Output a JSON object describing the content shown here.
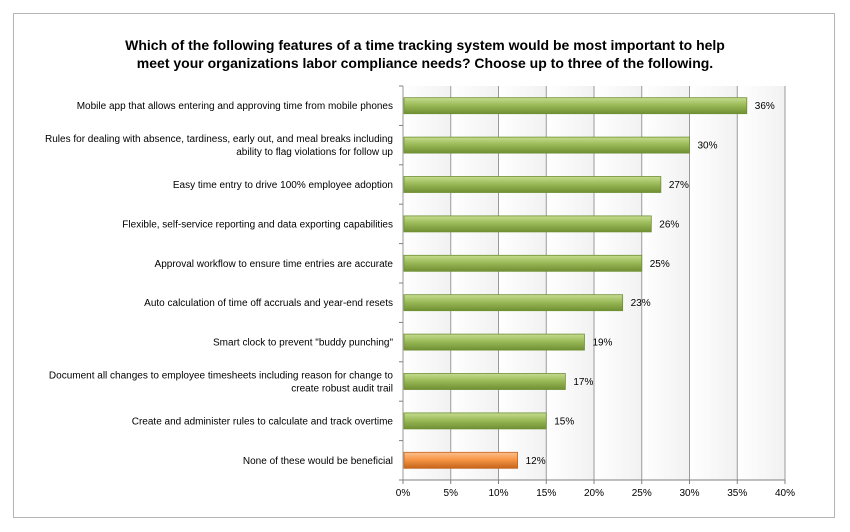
{
  "chart_data": {
    "type": "bar",
    "orientation": "horizontal",
    "title_lines": [
      "Which of the following features of a time tracking system would be most important to help",
      "meet your organizations labor compliance needs?  Choose up to three of the following."
    ],
    "categories": [
      [
        "Mobile app that allows entering and approving time from mobile phones"
      ],
      [
        "Rules for dealing with absence, tardiness, early out, and meal breaks including",
        "ability to flag violations for follow up"
      ],
      [
        "Easy time entry to drive 100% employee adoption"
      ],
      [
        "Flexible, self-service reporting and data exporting capabilities"
      ],
      [
        "Approval workflow to ensure time entries are accurate"
      ],
      [
        "Auto calculation of time off accruals and year-end resets"
      ],
      [
        "Smart clock to prevent \"buddy punching\""
      ],
      [
        "Document all changes to employee timesheets including reason for change to",
        "create robust audit trail"
      ],
      [
        "Create and administer rules to calculate and track overtime"
      ],
      [
        "None of these would be beneficial"
      ]
    ],
    "values": [
      36,
      30,
      27,
      26,
      25,
      23,
      19,
      17,
      15,
      12
    ],
    "data_labels": [
      "36%",
      "30%",
      "27%",
      "26%",
      "25%",
      "23%",
      "19%",
      "17%",
      "15%",
      "12%"
    ],
    "highlight_index": 9,
    "xlim": [
      0,
      40
    ],
    "x_ticks": [
      0,
      5,
      10,
      15,
      20,
      25,
      30,
      35,
      40
    ],
    "x_tick_labels": [
      "0%",
      "5%",
      "10%",
      "15%",
      "20%",
      "25%",
      "30%",
      "35%",
      "40%"
    ],
    "grid": true,
    "colors": {
      "bar": "#9bbb59",
      "bar_light": "#c6dc8f",
      "bar_dark": "#6f8f33",
      "highlight": "#f79646",
      "highlight_light": "#fbc08e",
      "highlight_dark": "#c4651c",
      "grid": "#9a9a9a",
      "plot_band": "#f2f2f2"
    }
  }
}
